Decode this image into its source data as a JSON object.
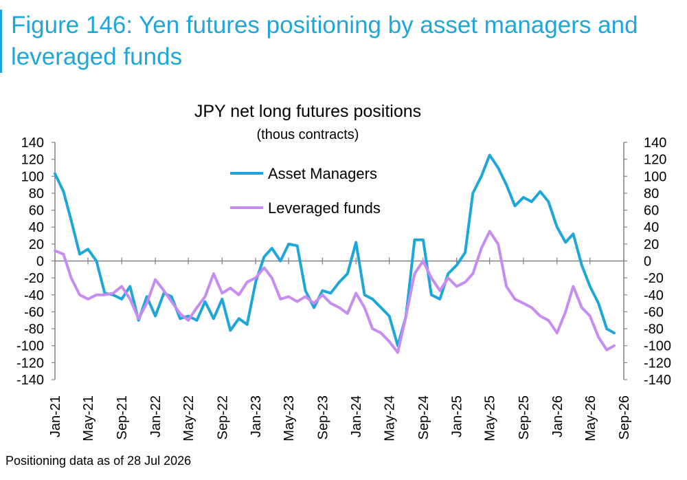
{
  "figure_title": "Figure 146: Yen futures positioning by asset managers and leveraged funds",
  "footnote": "Positioning data as of 28 Jul 2026",
  "colors": {
    "accent": "#1ea6d9",
    "asset_managers": "#1ea6d9",
    "leveraged_funds": "#c78cf2",
    "axis": "#808080"
  },
  "chart_data": {
    "type": "line",
    "title": "JPY net long futures positions",
    "subtitle": "(thous contracts)",
    "xlabel": "",
    "ylabel": "",
    "ylim": [
      -140,
      140
    ],
    "yticks": [
      140,
      120,
      100,
      80,
      60,
      40,
      20,
      0,
      -20,
      -40,
      -60,
      -80,
      -100,
      -120,
      -140
    ],
    "xlim": [
      "2021-01",
      "2026-09"
    ],
    "x_tick_labels": [
      "Jan-21",
      "May-21",
      "Sep-21",
      "Jan-22",
      "May-22",
      "Sep-22",
      "Jan-23",
      "May-23",
      "Sep-23",
      "Jan-24",
      "May-24",
      "Sep-24",
      "Jan-25",
      "May-25",
      "Sep-25",
      "Jan-26",
      "May-26",
      "Sep-26"
    ],
    "legend_position": "top-center",
    "grid": false,
    "series": [
      {
        "name": "Asset Managers",
        "color": "#1ea6d9",
        "points": [
          [
            "2021-01",
            103
          ],
          [
            "2021-02",
            82
          ],
          [
            "2021-03",
            48
          ],
          [
            "2021-04",
            8
          ],
          [
            "2021-05",
            14
          ],
          [
            "2021-06",
            0
          ],
          [
            "2021-07",
            -38
          ],
          [
            "2021-08",
            -40
          ],
          [
            "2021-09",
            -45
          ],
          [
            "2021-10",
            -30
          ],
          [
            "2021-11",
            -70
          ],
          [
            "2021-12",
            -42
          ],
          [
            "2022-01",
            -65
          ],
          [
            "2022-02",
            -38
          ],
          [
            "2022-03",
            -42
          ],
          [
            "2022-04",
            -68
          ],
          [
            "2022-05",
            -65
          ],
          [
            "2022-06",
            -70
          ],
          [
            "2022-07",
            -48
          ],
          [
            "2022-08",
            -68
          ],
          [
            "2022-09",
            -45
          ],
          [
            "2022-10",
            -82
          ],
          [
            "2022-11",
            -68
          ],
          [
            "2022-12",
            -75
          ],
          [
            "2023-01",
            -25
          ],
          [
            "2023-02",
            5
          ],
          [
            "2023-03",
            15
          ],
          [
            "2023-04",
            0
          ],
          [
            "2023-05",
            20
          ],
          [
            "2023-06",
            18
          ],
          [
            "2023-07",
            -35
          ],
          [
            "2023-08",
            -55
          ],
          [
            "2023-09",
            -35
          ],
          [
            "2023-10",
            -38
          ],
          [
            "2023-11",
            -25
          ],
          [
            "2023-12",
            -15
          ],
          [
            "2024-01",
            22
          ],
          [
            "2024-02",
            -40
          ],
          [
            "2024-03",
            -45
          ],
          [
            "2024-04",
            -55
          ],
          [
            "2024-05",
            -65
          ],
          [
            "2024-06",
            -100
          ],
          [
            "2024-07",
            -65
          ],
          [
            "2024-08",
            25
          ],
          [
            "2024-09",
            25
          ],
          [
            "2024-10",
            -40
          ],
          [
            "2024-11",
            -45
          ],
          [
            "2024-12",
            -15
          ],
          [
            "2025-01",
            -5
          ],
          [
            "2025-02",
            10
          ],
          [
            "2025-03",
            80
          ],
          [
            "2025-04",
            100
          ],
          [
            "2025-05",
            125
          ],
          [
            "2025-06",
            110
          ],
          [
            "2025-07",
            90
          ],
          [
            "2025-08",
            65
          ],
          [
            "2025-09",
            75
          ],
          [
            "2025-10",
            70
          ],
          [
            "2025-11",
            82
          ],
          [
            "2025-12",
            70
          ],
          [
            "2026-01",
            40
          ],
          [
            "2026-02",
            22
          ],
          [
            "2026-03",
            32
          ],
          [
            "2026-04",
            -5
          ],
          [
            "2026-05",
            -30
          ],
          [
            "2026-06",
            -50
          ],
          [
            "2026-07",
            -80
          ],
          [
            "2026-07-28",
            -85
          ]
        ]
      },
      {
        "name": "Leveraged funds",
        "color": "#c78cf2",
        "points": [
          [
            "2021-01",
            12
          ],
          [
            "2021-02",
            8
          ],
          [
            "2021-03",
            -20
          ],
          [
            "2021-04",
            -40
          ],
          [
            "2021-05",
            -45
          ],
          [
            "2021-06",
            -40
          ],
          [
            "2021-07",
            -40
          ],
          [
            "2021-08",
            -38
          ],
          [
            "2021-09",
            -30
          ],
          [
            "2021-10",
            -45
          ],
          [
            "2021-11",
            -68
          ],
          [
            "2021-12",
            -50
          ],
          [
            "2022-01",
            -22
          ],
          [
            "2022-02",
            -35
          ],
          [
            "2022-03",
            -48
          ],
          [
            "2022-04",
            -62
          ],
          [
            "2022-05",
            -70
          ],
          [
            "2022-06",
            -55
          ],
          [
            "2022-07",
            -42
          ],
          [
            "2022-08",
            -15
          ],
          [
            "2022-09",
            -38
          ],
          [
            "2022-10",
            -32
          ],
          [
            "2022-11",
            -40
          ],
          [
            "2022-12",
            -25
          ],
          [
            "2023-01",
            -20
          ],
          [
            "2023-02",
            -8
          ],
          [
            "2023-03",
            -20
          ],
          [
            "2023-04",
            -45
          ],
          [
            "2023-05",
            -42
          ],
          [
            "2023-06",
            -48
          ],
          [
            "2023-07",
            -42
          ],
          [
            "2023-08",
            -50
          ],
          [
            "2023-09",
            -40
          ],
          [
            "2023-10",
            -50
          ],
          [
            "2023-11",
            -55
          ],
          [
            "2023-12",
            -62
          ],
          [
            "2024-01",
            -38
          ],
          [
            "2024-02",
            -55
          ],
          [
            "2024-03",
            -80
          ],
          [
            "2024-04",
            -85
          ],
          [
            "2024-05",
            -95
          ],
          [
            "2024-06",
            -108
          ],
          [
            "2024-07",
            -65
          ],
          [
            "2024-08",
            -15
          ],
          [
            "2024-09",
            0
          ],
          [
            "2024-10",
            -20
          ],
          [
            "2024-11",
            -35
          ],
          [
            "2024-12",
            -20
          ],
          [
            "2025-01",
            -30
          ],
          [
            "2025-02",
            -25
          ],
          [
            "2025-03",
            -15
          ],
          [
            "2025-04",
            15
          ],
          [
            "2025-05",
            35
          ],
          [
            "2025-06",
            20
          ],
          [
            "2025-07",
            -30
          ],
          [
            "2025-08",
            -45
          ],
          [
            "2025-09",
            -50
          ],
          [
            "2025-10",
            -55
          ],
          [
            "2025-11",
            -65
          ],
          [
            "2025-12",
            -70
          ],
          [
            "2026-01",
            -85
          ],
          [
            "2026-02",
            -60
          ],
          [
            "2026-03",
            -30
          ],
          [
            "2026-04",
            -55
          ],
          [
            "2026-05",
            -65
          ],
          [
            "2026-06",
            -90
          ],
          [
            "2026-07",
            -105
          ],
          [
            "2026-07-28",
            -100
          ]
        ]
      }
    ]
  }
}
